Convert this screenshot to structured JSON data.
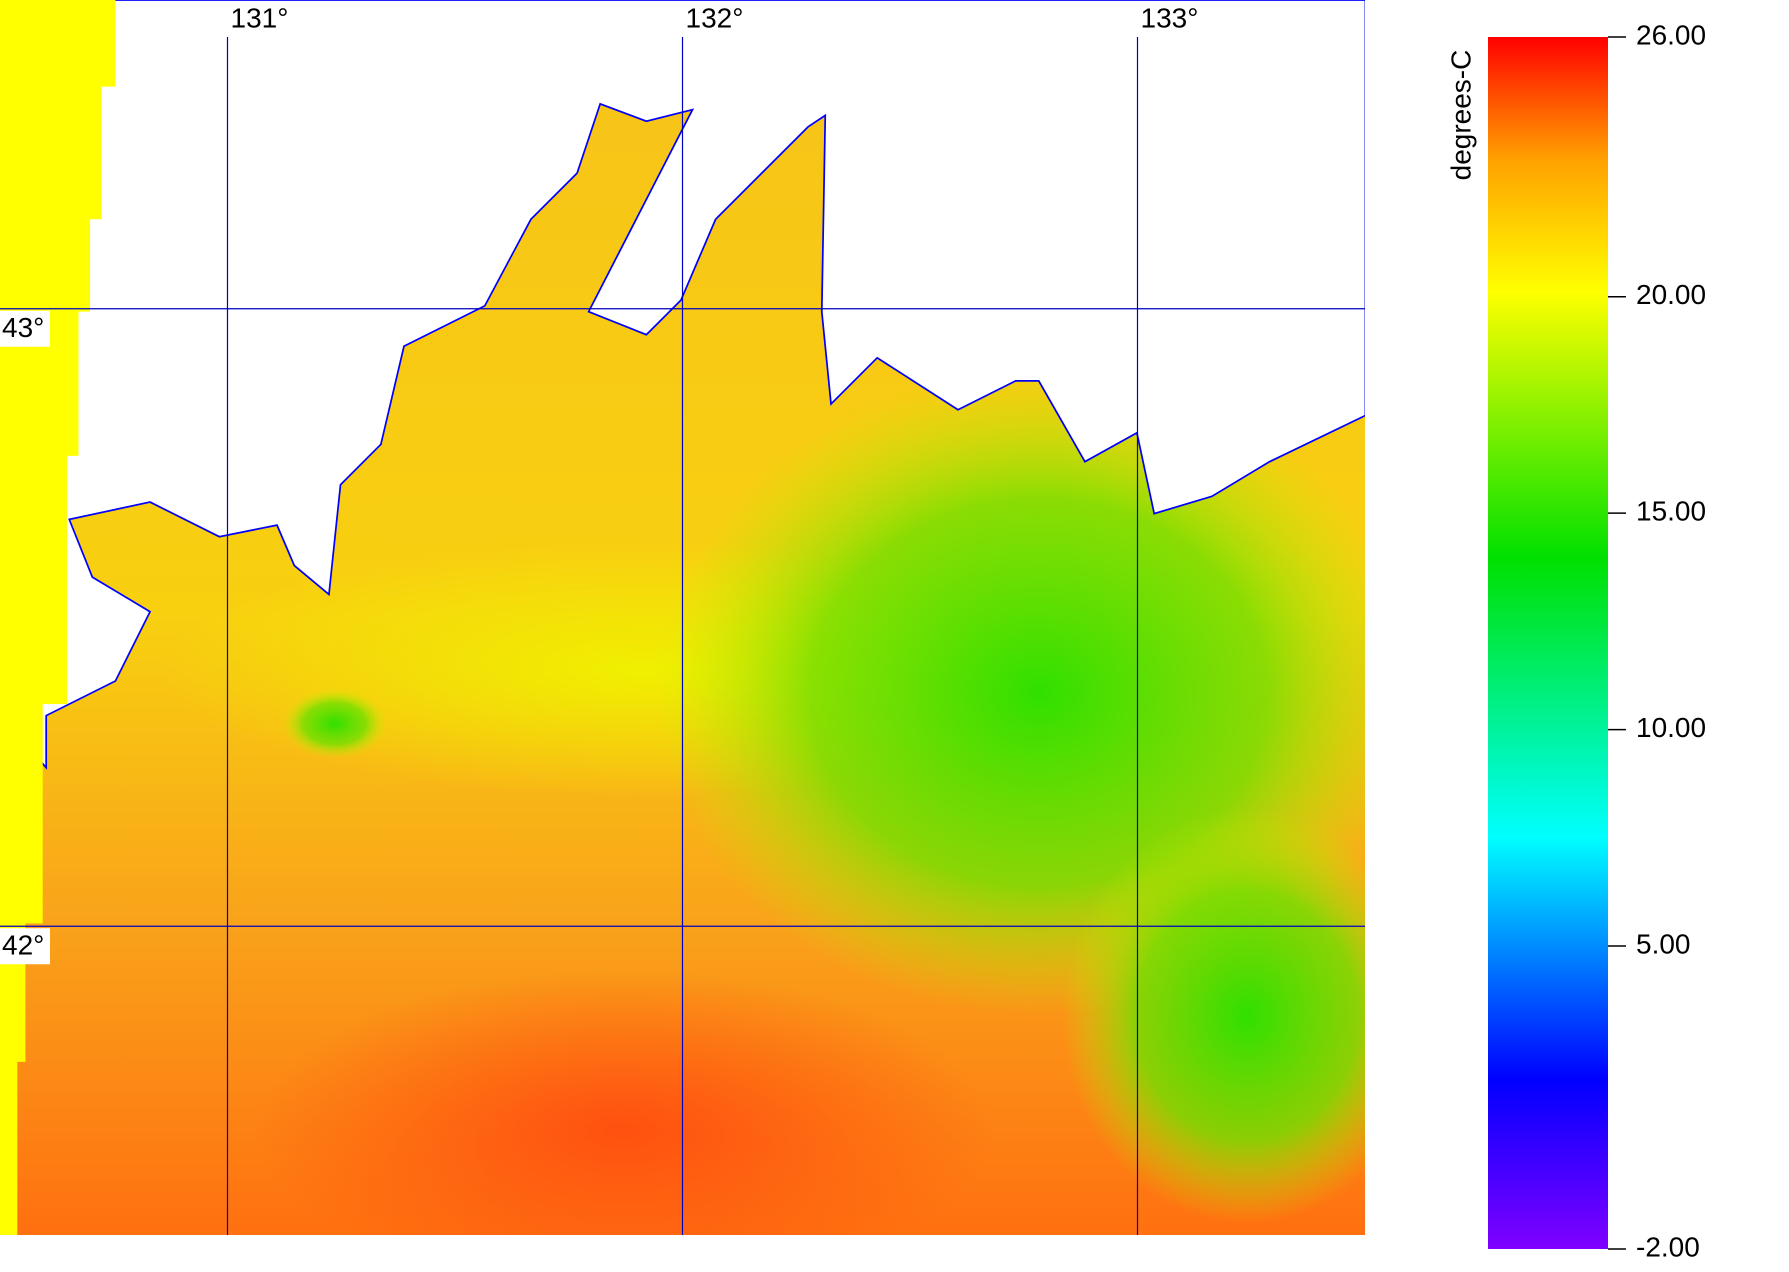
{
  "map": {
    "xlim": [
      130.5,
      133.5
    ],
    "ylim": [
      41.5,
      43.5
    ],
    "xticks": [
      {
        "value": 131,
        "label": "131°"
      },
      {
        "value": 132,
        "label": "132°"
      },
      {
        "value": 133,
        "label": "133°"
      }
    ],
    "yticks": [
      {
        "value": 43,
        "label": "43°"
      },
      {
        "value": 42,
        "label": "42°"
      }
    ]
  },
  "colorbar": {
    "title": "degrees-C",
    "lim": [
      -2,
      26
    ],
    "ticks": [
      {
        "value": 26,
        "label": "26.00"
      },
      {
        "value": 20,
        "label": "20.00"
      },
      {
        "value": 15,
        "label": "15.00"
      },
      {
        "value": 10,
        "label": "10.00"
      },
      {
        "value": 5,
        "label": "5.00"
      },
      {
        "value": -2,
        "label": "-2.00"
      }
    ]
  }
}
